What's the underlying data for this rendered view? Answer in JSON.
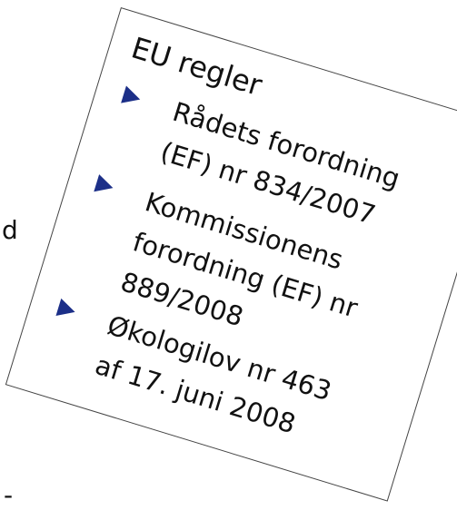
{
  "left_fragments": [
    "d",
    "-"
  ],
  "box": {
    "title": "EU regler",
    "items": [
      [
        "Rådets forordning",
        "(EF) nr 834/2007"
      ],
      [
        "Kommissionens",
        "forordning (EF) nr",
        "889/2008"
      ],
      [
        "Økologilov nr 463",
        "af 17. juni 2008"
      ]
    ]
  }
}
